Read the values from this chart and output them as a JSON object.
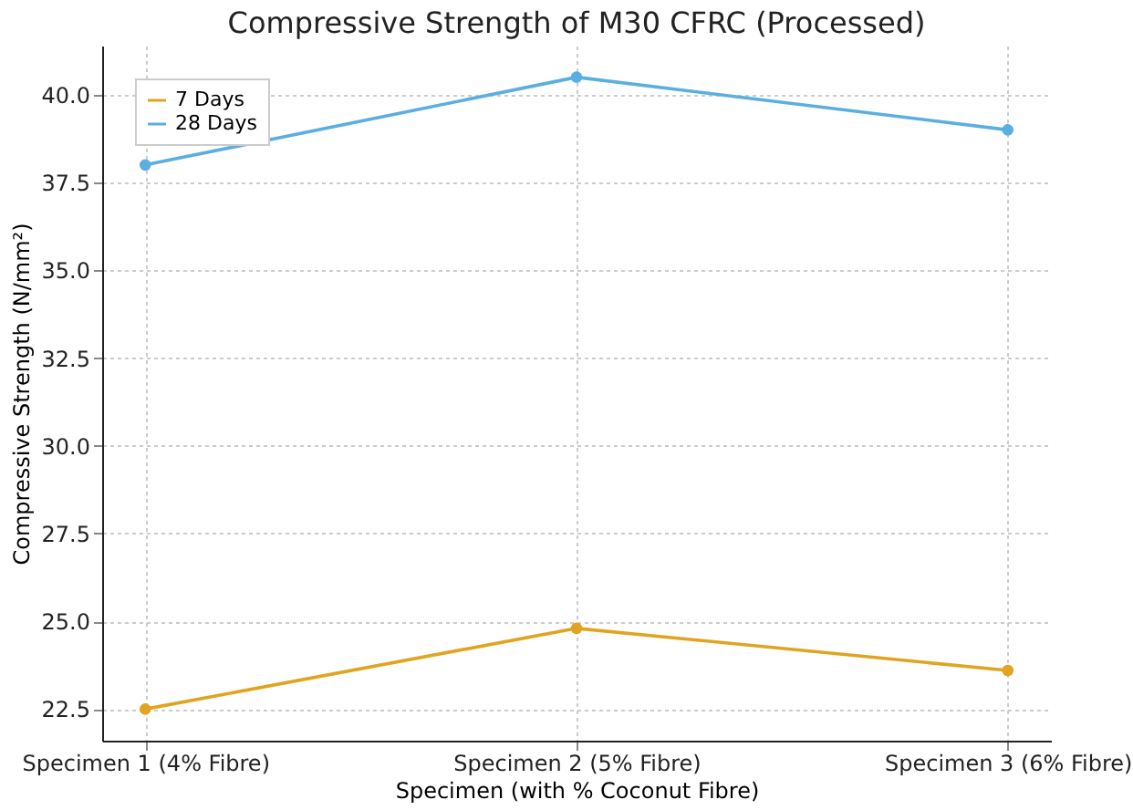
{
  "chart_data": {
    "type": "line",
    "title": "Compressive Strength of M30 CFRC (Processed)",
    "xlabel": "Specimen (with % Coconut Fibre)",
    "ylabel": "Compressive Strength (N/mm²)",
    "categories": [
      "Specimen 1 (4% Fibre)",
      "Specimen 2 (5% Fibre)",
      "Specimen 3 (6% Fibre)"
    ],
    "series": [
      {
        "name": "7 Days",
        "color": "#e0a420",
        "values": [
          22.5,
          24.8,
          23.6
        ]
      },
      {
        "name": "28 Days",
        "color": "#5aaee0",
        "values": [
          38.0,
          40.5,
          39.0
        ]
      }
    ],
    "ylim": [
      21.6,
      41.4
    ],
    "yticks": [
      {
        "value": 22.5,
        "label": "22.5"
      },
      {
        "value": 25,
        "label": "25.0"
      },
      {
        "value": 27.5,
        "label": "27.5"
      },
      {
        "value": 30,
        "label": "30.0"
      },
      {
        "value": 32.5,
        "label": "32.5"
      },
      {
        "value": 35,
        "label": "35.0"
      },
      {
        "value": 37.5,
        "label": "37.5"
      },
      {
        "value": 40,
        "label": "40.0"
      }
    ],
    "grid": true,
    "legend": "top left",
    "marker": "circle",
    "line_style": "solid"
  }
}
